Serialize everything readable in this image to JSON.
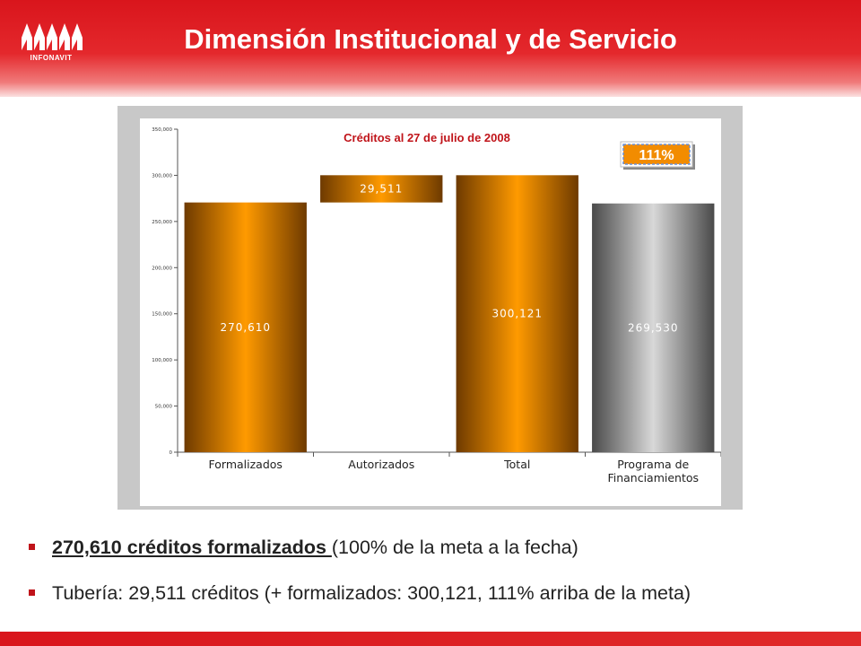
{
  "header": {
    "title": "Dimensión Institucional y de Servicio",
    "logo_text": "INFONAVIT"
  },
  "colors": {
    "header_red": "#d9151c",
    "orange_bar": "#f28c00",
    "gray_bar": "#9a9a9a",
    "badge_orange": "#f28c00",
    "chart_title_red": "#c0141a"
  },
  "chart_data": {
    "type": "bar",
    "title": "Créditos al 27 de julio de 2008",
    "categories": [
      "Formalizados",
      "Autorizados",
      "Total",
      "Programa de Financiamientos"
    ],
    "category_lines": [
      [
        "Formalizados"
      ],
      [
        "Autorizados"
      ],
      [
        "Total"
      ],
      [
        "Programa de",
        "Financiamientos"
      ]
    ],
    "bars": [
      {
        "category": "Formalizados",
        "base": 0,
        "value": 270610,
        "label": "270,610",
        "color": "orange"
      },
      {
        "category": "Autorizados",
        "base": 270610,
        "value": 29511,
        "label": "29,511",
        "color": "orange"
      },
      {
        "category": "Total",
        "base": 0,
        "value": 300121,
        "label": "300,121",
        "color": "orange"
      },
      {
        "category": "Programa de Financiamientos",
        "base": 0,
        "value": 269530,
        "label": "269,530",
        "color": "gray"
      }
    ],
    "ylim": [
      0,
      350000
    ],
    "yticks": [
      0,
      50000,
      100000,
      150000,
      200000,
      250000,
      300000,
      350000
    ],
    "ytick_labels": [
      "0",
      "50,000",
      "100,000",
      "150,000",
      "200,000",
      "250,000",
      "300,000",
      "350,000"
    ],
    "badge": "111%",
    "grid": false,
    "legend": "none"
  },
  "bullets": [
    {
      "strong": "270,610 créditos formalizados ",
      "rest": "(100% de la meta a la fecha)"
    },
    {
      "strong": "",
      "rest": "Tubería: 29,511 créditos (+ formalizados: 300,121, 111% arriba de la meta)"
    }
  ]
}
